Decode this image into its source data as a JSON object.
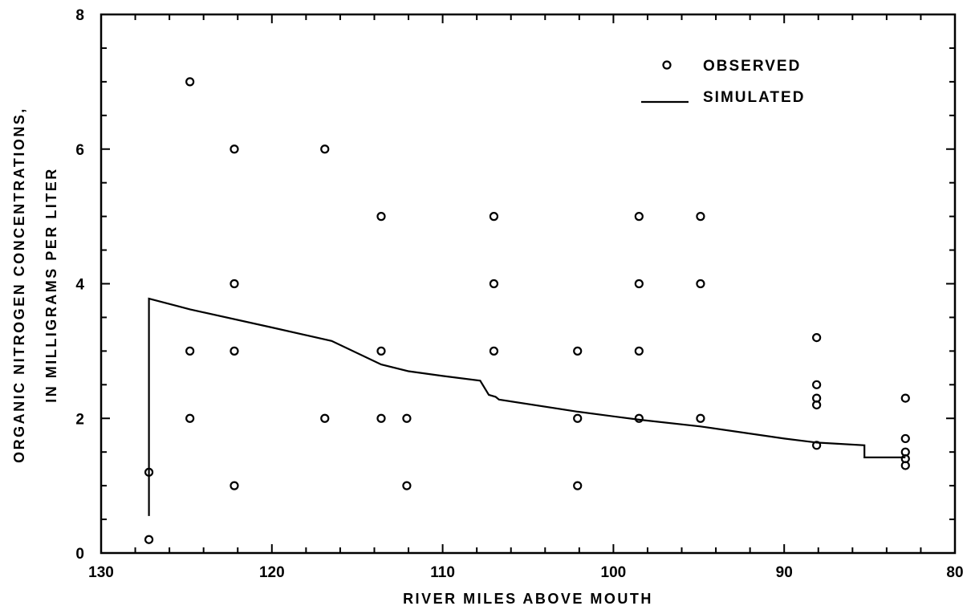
{
  "chart_data": {
    "type": "scatter",
    "title": "",
    "xlabel": "RIVER MILES ABOVE MOUTH",
    "ylabel_lines": [
      "ORGANIC NITROGEN CONCENTRATIONS,",
      "IN MILLIGRAMS PER LITER"
    ],
    "xlim": [
      130,
      80
    ],
    "ylim": [
      0,
      8
    ],
    "x_reversed": true,
    "grid": false,
    "legend_position": "top-right",
    "x_ticks": [
      "130",
      "120",
      "110",
      "100",
      "90",
      "80"
    ],
    "y_ticks": [
      "0",
      "2",
      "4",
      "6",
      "8"
    ],
    "series": [
      {
        "name": "OBSERVED",
        "type": "scatter",
        "marker": "open-circle",
        "points": [
          [
            127.2,
            1.2
          ],
          [
            127.2,
            0.2
          ],
          [
            124.8,
            7.0
          ],
          [
            124.8,
            3.0
          ],
          [
            124.8,
            2.0
          ],
          [
            122.2,
            6.0
          ],
          [
            122.2,
            4.0
          ],
          [
            122.2,
            3.0
          ],
          [
            122.2,
            1.0
          ],
          [
            116.9,
            6.0
          ],
          [
            116.9,
            2.0
          ],
          [
            113.6,
            5.0
          ],
          [
            113.6,
            3.0
          ],
          [
            113.6,
            2.0
          ],
          [
            112.1,
            2.0
          ],
          [
            112.1,
            1.0
          ],
          [
            107.0,
            5.0
          ],
          [
            107.0,
            4.0
          ],
          [
            107.0,
            3.0
          ],
          [
            102.1,
            3.0
          ],
          [
            102.1,
            2.0
          ],
          [
            102.1,
            1.0
          ],
          [
            98.5,
            5.0
          ],
          [
            98.5,
            4.0
          ],
          [
            98.5,
            3.0
          ],
          [
            98.5,
            2.0
          ],
          [
            94.9,
            5.0
          ],
          [
            94.9,
            4.0
          ],
          [
            94.9,
            2.0
          ],
          [
            88.1,
            3.2
          ],
          [
            88.1,
            2.5
          ],
          [
            88.1,
            2.3
          ],
          [
            88.1,
            2.2
          ],
          [
            88.1,
            1.6
          ],
          [
            82.9,
            2.3
          ],
          [
            82.9,
            1.7
          ],
          [
            82.9,
            1.5
          ],
          [
            82.9,
            1.4
          ],
          [
            82.9,
            1.3
          ]
        ]
      },
      {
        "name": "SIMULATED",
        "type": "line",
        "points": [
          [
            127.2,
            0.55
          ],
          [
            127.2,
            3.78
          ],
          [
            124.8,
            3.62
          ],
          [
            120,
            3.35
          ],
          [
            116.5,
            3.15
          ],
          [
            113.6,
            2.8
          ],
          [
            112.0,
            2.7
          ],
          [
            110,
            2.63
          ],
          [
            107.8,
            2.56
          ],
          [
            107.3,
            2.35
          ],
          [
            106.9,
            2.32
          ],
          [
            106.7,
            2.28
          ],
          [
            102.1,
            2.1
          ],
          [
            98.5,
            1.98
          ],
          [
            94.9,
            1.88
          ],
          [
            90,
            1.7
          ],
          [
            88.1,
            1.64
          ],
          [
            85.3,
            1.6
          ],
          [
            85.3,
            1.42
          ],
          [
            82.9,
            1.42
          ]
        ]
      }
    ]
  }
}
